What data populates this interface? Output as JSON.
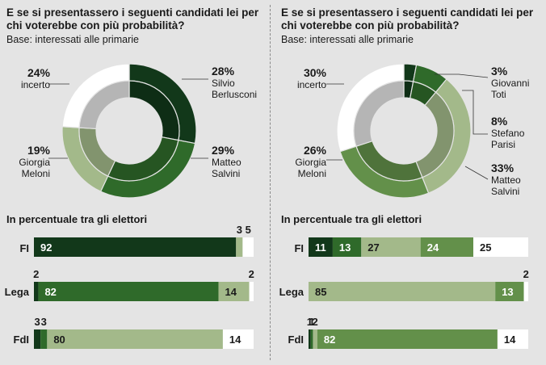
{
  "colors": {
    "dark": "#12381a",
    "mid": "#2f6a2a",
    "olive": "#63904a",
    "light": "#a3b98a",
    "white": "#ffffff"
  },
  "left": {
    "title_line1": "E se si presentassero i seguenti candidati lei per",
    "title_line2": "chi voterebbe con più probabilità?",
    "base": "Base: interessati alle primarie",
    "labels": [
      {
        "pct": "24%",
        "name1": "incerto",
        "name2": ""
      },
      {
        "pct": "28%",
        "name1": "Silvio",
        "name2": "Berlusconi"
      },
      {
        "pct": "29%",
        "name1": "Matteo",
        "name2": "Salvini"
      },
      {
        "pct": "19%",
        "name1": "Giorgia",
        "name2": "Meloni"
      }
    ],
    "subtitle": "In percentuale tra gli elettori"
  },
  "right": {
    "title_line1": "E se si presentassero i seguenti candidati lei per",
    "title_line2": "chi voterebbe con più probabilità?",
    "base": "Base: interessati alle primarie",
    "labels": [
      {
        "pct": "30%",
        "name1": "incerto",
        "name2": ""
      },
      {
        "pct": "3%",
        "name1": "Giovanni",
        "name2": "Toti"
      },
      {
        "pct": "8%",
        "name1": "Stefano",
        "name2": "Parisi"
      },
      {
        "pct": "33%",
        "name1": "Matteo",
        "name2": "Salvini"
      },
      {
        "pct": "26%",
        "name1": "Giorgia",
        "name2": "Meloni"
      }
    ],
    "subtitle": "In percentuale tra gli elettori"
  },
  "chart_data": [
    {
      "type": "pie",
      "title": "E se si presentassero i seguenti candidati lei per chi voterebbe con più probabilità?",
      "subtitle": "Base: interessati alle primarie",
      "categories": [
        "Silvio Berlusconi",
        "Matteo Salvini",
        "Giorgia Meloni",
        "incerto"
      ],
      "values": [
        28,
        29,
        19,
        24
      ],
      "colors": [
        "#12381a",
        "#2f6a2a",
        "#a3b98a",
        "#ffffff"
      ]
    },
    {
      "type": "bar",
      "title": "In percentuale tra gli elettori",
      "stacked": true,
      "categories": [
        "FI",
        "Lega",
        "FdI"
      ],
      "segments": [
        {
          "values": [
            92,
            3,
            5
          ],
          "labels": [
            "92",
            "3",
            "5"
          ],
          "colors": [
            "#12381a",
            "#a3b98a",
            "#ffffff"
          ]
        },
        {
          "values": [
            2,
            82,
            14,
            2
          ],
          "labels": [
            "2",
            "82",
            "14",
            "2"
          ],
          "colors": [
            "#12381a",
            "#2f6a2a",
            "#a3b98a",
            "#ffffff"
          ]
        },
        {
          "values": [
            3,
            3,
            80,
            14
          ],
          "labels": [
            "3",
            "3",
            "80",
            "14"
          ],
          "colors": [
            "#12381a",
            "#2f6a2a",
            "#a3b98a",
            "#ffffff"
          ]
        }
      ]
    },
    {
      "type": "pie",
      "title": "E se si presentassero i seguenti candidati lei per chi voterebbe con più probabilità?",
      "subtitle": "Base: interessati alle primarie",
      "categories": [
        "Giovanni Toti",
        "Stefano Parisi",
        "Matteo Salvini",
        "Giorgia Meloni",
        "incerto"
      ],
      "values": [
        3,
        8,
        33,
        26,
        30
      ],
      "colors": [
        "#12381a",
        "#2f6a2a",
        "#a3b98a",
        "#63904a",
        "#ffffff"
      ]
    },
    {
      "type": "bar",
      "title": "In percentuale tra gli elettori",
      "stacked": true,
      "categories": [
        "FI",
        "Lega",
        "FdI"
      ],
      "segments": [
        {
          "values": [
            11,
            13,
            27,
            24,
            25
          ],
          "labels": [
            "11",
            "13",
            "27",
            "24",
            "25"
          ],
          "colors": [
            "#12381a",
            "#2f6a2a",
            "#a3b98a",
            "#63904a",
            "#ffffff"
          ]
        },
        {
          "values": [
            85,
            13,
            2
          ],
          "labels": [
            "85",
            "13",
            "2"
          ],
          "colors": [
            "#a3b98a",
            "#63904a",
            "#ffffff"
          ]
        },
        {
          "values": [
            1,
            1,
            2,
            82,
            14
          ],
          "labels": [
            "1",
            "1",
            "2",
            "82",
            "14"
          ],
          "colors": [
            "#12381a",
            "#2f6a2a",
            "#a3b98a",
            "#63904a",
            "#ffffff"
          ]
        }
      ]
    }
  ]
}
